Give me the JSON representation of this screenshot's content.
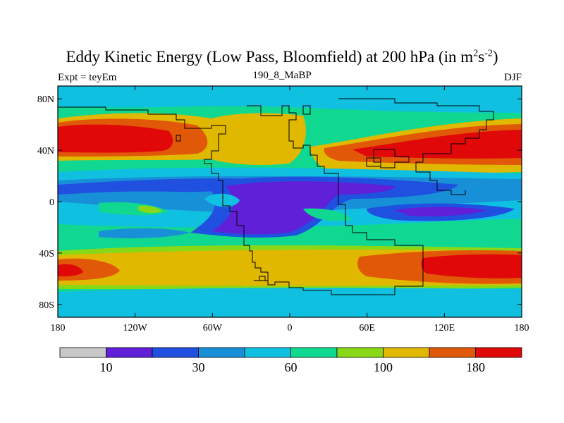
{
  "chart_data": {
    "type": "filled-contour map",
    "title_main": "Eddy Kinetic Energy (Low Pass, Bloomfield) at 200 hPa (in m",
    "title_sup1": "2",
    "title_mid": "s",
    "title_sup2": "-2",
    "title_end": ")",
    "left_label": "Expt = teyEm",
    "center_label": "190_8_MaBP",
    "right_label": "DJF",
    "lon_range": [
      -180,
      180
    ],
    "lat_range": [
      -90,
      90
    ],
    "x_ticks": [
      {
        "value": -180,
        "label": "180"
      },
      {
        "value": -120,
        "label": "120W"
      },
      {
        "value": -60,
        "label": "60W"
      },
      {
        "value": 0,
        "label": "0"
      },
      {
        "value": 60,
        "label": "60E"
      },
      {
        "value": 120,
        "label": "120E"
      },
      {
        "value": 180,
        "label": "180"
      }
    ],
    "y_ticks": [
      {
        "value": 80,
        "label": "80N"
      },
      {
        "value": 40,
        "label": "40N"
      },
      {
        "value": 0,
        "label": "0"
      },
      {
        "value": -40,
        "label": "40S"
      },
      {
        "value": -80,
        "label": "80S"
      }
    ],
    "colorbar": {
      "colors": [
        "#c8c8c8",
        "#6020d8",
        "#2050e0",
        "#1890d8",
        "#10c0e0",
        "#10d890",
        "#88d818",
        "#e0b800",
        "#e05808",
        "#e00808"
      ],
      "labels": [
        {
          "index": 1,
          "label": "10"
        },
        {
          "index": 3,
          "label": "30"
        },
        {
          "index": 5,
          "label": "60"
        },
        {
          "index": 7,
          "label": "100"
        },
        {
          "index": 9,
          "label": "180"
        }
      ]
    }
  }
}
